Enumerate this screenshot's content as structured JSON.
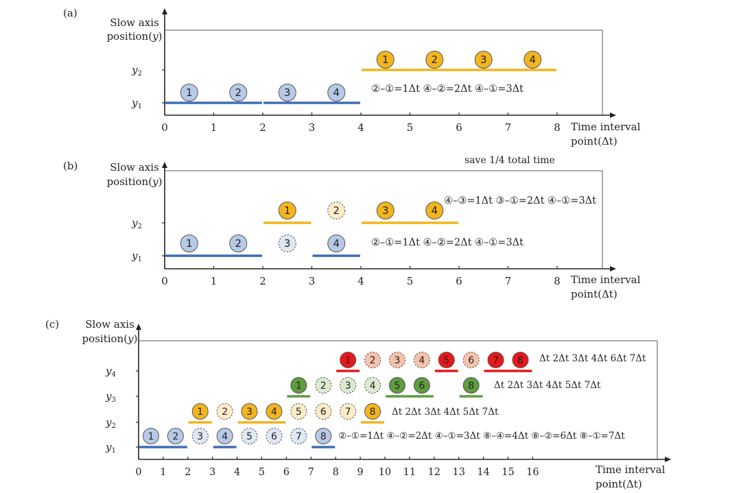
{
  "colors": {
    "blue_fill": "#b7c9e6",
    "blue_line": "#3f6db5",
    "orange_fill": "#f3b51f",
    "orange_line": "#f0b51a",
    "green_fill": "#5e9c3f",
    "green_line": "#5e9c3f",
    "red_fill": "#e8171b",
    "red_line": "#e8171b",
    "faded_blue": "#dfe7f3",
    "faded_orange": "#fbecc8",
    "faded_green": "#dcead2",
    "faded_red": "#f6c2ab"
  },
  "common": {
    "slow_axis_line1": "Slow axis",
    "slow_axis_line2": "position(y)",
    "time_line1": "Time interval",
    "time_line2": "point(Δt)"
  },
  "panels": [
    {
      "id": "a",
      "label": "(a)",
      "x_ticks": [
        "0",
        "1",
        "2",
        "3",
        "4",
        "5",
        "6",
        "7",
        "8"
      ],
      "y_levels": [
        {
          "name": "y1",
          "text": "y",
          "sub": "1"
        },
        {
          "name": "y2",
          "text": "y",
          "sub": "2"
        }
      ],
      "segments": [
        {
          "x0": 0,
          "x1": 2,
          "level": 0,
          "color": "blue"
        },
        {
          "x0": 2,
          "x1": 4,
          "level": 0,
          "color": "blue"
        },
        {
          "x0": 4,
          "x1": 8,
          "level": 1,
          "color": "orange"
        }
      ],
      "circles": [
        {
          "x": 0.5,
          "level": 0,
          "label": "1",
          "color": "blue",
          "dashed": false
        },
        {
          "x": 1.5,
          "level": 0,
          "label": "2",
          "color": "blue",
          "dashed": false
        },
        {
          "x": 2.5,
          "level": 0,
          "label": "3",
          "color": "blue",
          "dashed": false
        },
        {
          "x": 3.5,
          "level": 0,
          "label": "4",
          "color": "blue",
          "dashed": false
        },
        {
          "x": 4.5,
          "level": 1,
          "label": "1",
          "color": "orange",
          "dashed": false
        },
        {
          "x": 5.5,
          "level": 1,
          "label": "2",
          "color": "orange",
          "dashed": false
        },
        {
          "x": 6.5,
          "level": 1,
          "label": "3",
          "color": "orange",
          "dashed": false
        },
        {
          "x": 7.5,
          "level": 1,
          "label": "4",
          "color": "orange",
          "dashed": false
        }
      ],
      "annotations": [
        {
          "text": "②–①=1Δt  ④–②=2Δt  ④–①=3Δt",
          "level": 0
        }
      ],
      "note": ""
    },
    {
      "id": "b",
      "label": "(b)",
      "x_ticks": [
        "0",
        "1",
        "2",
        "3",
        "4",
        "5",
        "6",
        "7",
        "8"
      ],
      "y_levels": [
        {
          "name": "y1",
          "text": "y",
          "sub": "1"
        },
        {
          "name": "y2",
          "text": "y",
          "sub": "2"
        }
      ],
      "segments": [
        {
          "x0": 0,
          "x1": 2,
          "level": 0,
          "color": "blue"
        },
        {
          "x0": 3,
          "x1": 4,
          "level": 0,
          "color": "blue"
        },
        {
          "x0": 2,
          "x1": 3,
          "level": 1,
          "color": "orange"
        },
        {
          "x0": 4,
          "x1": 6,
          "level": 1,
          "color": "orange"
        }
      ],
      "circles": [
        {
          "x": 0.5,
          "level": 0,
          "label": "1",
          "color": "blue",
          "dashed": false
        },
        {
          "x": 1.5,
          "level": 0,
          "label": "2",
          "color": "blue",
          "dashed": false
        },
        {
          "x": 2.5,
          "level": 0,
          "label": "3",
          "color": "blue",
          "dashed": true
        },
        {
          "x": 3.5,
          "level": 0,
          "label": "4",
          "color": "blue",
          "dashed": false
        },
        {
          "x": 2.5,
          "level": 1,
          "label": "1",
          "color": "orange",
          "dashed": false
        },
        {
          "x": 3.5,
          "level": 1,
          "label": "2",
          "color": "orange",
          "dashed": true
        },
        {
          "x": 4.5,
          "level": 1,
          "label": "3",
          "color": "orange",
          "dashed": false
        },
        {
          "x": 5.5,
          "level": 1,
          "label": "4",
          "color": "orange",
          "dashed": false
        }
      ],
      "annotations": [
        {
          "text": "②–①=1Δt  ④–②=2Δt  ④–①=3Δt",
          "level": 0
        },
        {
          "text": "④–③=1Δt  ③–①=2Δt  ④–①=3Δt",
          "level": 1
        }
      ],
      "note": "save 1/4 total time"
    },
    {
      "id": "c",
      "label": "(c)",
      "x_ticks": [
        "0",
        "1",
        "2",
        "3",
        "4",
        "5",
        "6",
        "7",
        "8",
        "9",
        "10",
        "11",
        "12",
        "13",
        "14",
        "15",
        "16"
      ],
      "y_levels": [
        {
          "name": "y1",
          "text": "y",
          "sub": "1"
        },
        {
          "name": "y2",
          "text": "y",
          "sub": "2"
        },
        {
          "name": "y3",
          "text": "y",
          "sub": "3"
        },
        {
          "name": "y4",
          "text": "y",
          "sub": "4"
        }
      ],
      "segments": [
        {
          "x0": 0,
          "x1": 2,
          "level": 0,
          "color": "blue"
        },
        {
          "x0": 3,
          "x1": 4,
          "level": 0,
          "color": "blue"
        },
        {
          "x0": 7,
          "x1": 8,
          "level": 0,
          "color": "blue"
        },
        {
          "x0": 2,
          "x1": 3,
          "level": 1,
          "color": "orange"
        },
        {
          "x0": 4,
          "x1": 6,
          "level": 1,
          "color": "orange"
        },
        {
          "x0": 9,
          "x1": 10,
          "level": 1,
          "color": "orange"
        },
        {
          "x0": 6,
          "x1": 7,
          "level": 2,
          "color": "green"
        },
        {
          "x0": 10,
          "x1": 12,
          "level": 2,
          "color": "green"
        },
        {
          "x0": 13,
          "x1": 14,
          "level": 2,
          "color": "green"
        },
        {
          "x0": 8,
          "x1": 9,
          "level": 3,
          "color": "red"
        },
        {
          "x0": 12,
          "x1": 13,
          "level": 3,
          "color": "red"
        },
        {
          "x0": 14,
          "x1": 16,
          "level": 3,
          "color": "red"
        }
      ],
      "circles": [
        {
          "x": 0.5,
          "level": 0,
          "label": "1",
          "color": "blue",
          "dashed": false
        },
        {
          "x": 1.5,
          "level": 0,
          "label": "2",
          "color": "blue",
          "dashed": false
        },
        {
          "x": 2.5,
          "level": 0,
          "label": "3",
          "color": "blue",
          "dashed": true
        },
        {
          "x": 3.5,
          "level": 0,
          "label": "4",
          "color": "blue",
          "dashed": false
        },
        {
          "x": 4.5,
          "level": 0,
          "label": "5",
          "color": "blue",
          "dashed": true
        },
        {
          "x": 5.5,
          "level": 0,
          "label": "6",
          "color": "blue",
          "dashed": true
        },
        {
          "x": 6.5,
          "level": 0,
          "label": "7",
          "color": "blue",
          "dashed": true
        },
        {
          "x": 7.5,
          "level": 0,
          "label": "8",
          "color": "blue",
          "dashed": false
        },
        {
          "x": 2.5,
          "level": 1,
          "label": "1",
          "color": "orange",
          "dashed": false
        },
        {
          "x": 3.5,
          "level": 1,
          "label": "2",
          "color": "orange",
          "dashed": true
        },
        {
          "x": 4.5,
          "level": 1,
          "label": "3",
          "color": "orange",
          "dashed": false
        },
        {
          "x": 5.5,
          "level": 1,
          "label": "4",
          "color": "orange",
          "dashed": false
        },
        {
          "x": 6.5,
          "level": 1,
          "label": "5",
          "color": "orange",
          "dashed": true
        },
        {
          "x": 7.5,
          "level": 1,
          "label": "6",
          "color": "orange",
          "dashed": true
        },
        {
          "x": 8.5,
          "level": 1,
          "label": "7",
          "color": "orange",
          "dashed": true
        },
        {
          "x": 9.5,
          "level": 1,
          "label": "8",
          "color": "orange",
          "dashed": false
        },
        {
          "x": 6.5,
          "level": 2,
          "label": "1",
          "color": "green",
          "dashed": false
        },
        {
          "x": 7.5,
          "level": 2,
          "label": "2",
          "color": "green",
          "dashed": true
        },
        {
          "x": 8.5,
          "level": 2,
          "label": "3",
          "color": "green",
          "dashed": true
        },
        {
          "x": 9.5,
          "level": 2,
          "label": "4",
          "color": "green",
          "dashed": true
        },
        {
          "x": 10.5,
          "level": 2,
          "label": "5",
          "color": "green",
          "dashed": false
        },
        {
          "x": 11.5,
          "level": 2,
          "label": "6",
          "color": "green",
          "dashed": false
        },
        {
          "x": 13.5,
          "level": 2,
          "label": "8",
          "color": "green",
          "dashed": false
        },
        {
          "x": 8.5,
          "level": 3,
          "label": "1",
          "color": "red",
          "dashed": false
        },
        {
          "x": 9.5,
          "level": 3,
          "label": "2",
          "color": "red",
          "dashed": true
        },
        {
          "x": 10.5,
          "level": 3,
          "label": "3",
          "color": "red",
          "dashed": true
        },
        {
          "x": 11.5,
          "level": 3,
          "label": "4",
          "color": "red",
          "dashed": true
        },
        {
          "x": 12.5,
          "level": 3,
          "label": "5",
          "color": "red",
          "dashed": false
        },
        {
          "x": 13.5,
          "level": 3,
          "label": "6",
          "color": "red",
          "dashed": true
        },
        {
          "x": 14.5,
          "level": 3,
          "label": "7",
          "color": "red",
          "dashed": false
        },
        {
          "x": 15.5,
          "level": 3,
          "label": "8",
          "color": "red",
          "dashed": false
        }
      ],
      "annotations": [
        {
          "text": "②–①=1Δt ④–②=2Δt ④–①=3Δt ⑧–④=4Δt ⑧–②=6Δt ⑧–①=7Δt",
          "level": 0
        },
        {
          "text": "Δt 2Δt 3Δt 4Δt 5Δt 7Δt",
          "level": 1
        },
        {
          "text": "Δt 2Δt 3Δt 4Δt 5Δt 7Δt",
          "level": 2
        },
        {
          "text": "Δt 2Δt 3Δt 4Δt 6Δt 7Δt",
          "level": 3
        }
      ],
      "note": ""
    }
  ]
}
